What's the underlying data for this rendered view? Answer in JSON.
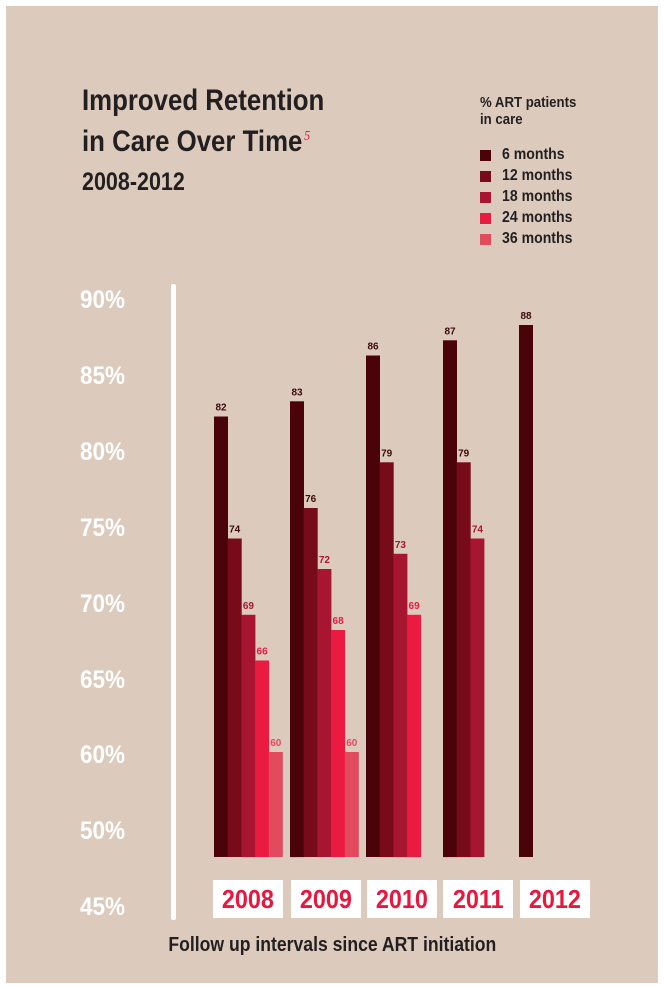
{
  "title_line1": "Improved Retention",
  "title_line2": "in Care Over Time",
  "footnote": "5",
  "subtitle": "2008-2012",
  "colors": {
    "background": "#dccbbd",
    "text": "#231f20",
    "accent": "#e8173e",
    "white": "#ffffff"
  },
  "chart_data": {
    "type": "bar",
    "title": "Improved Retention in Care Over Time",
    "subtitle": "2008-2012",
    "xlabel": "Follow up intervals since ART initiation",
    "legend_title": "% ART patients\nin care",
    "legend_position": "top-right",
    "categories": [
      "2008",
      "2009",
      "2010",
      "2011",
      "2012"
    ],
    "yticks": [
      "90%",
      "85%",
      "80%",
      "75%",
      "70%",
      "65%",
      "60%",
      "50%",
      "45%"
    ],
    "series": [
      {
        "name": "6 months",
        "color": "#4a0309",
        "values": [
          82,
          83,
          86,
          87,
          88
        ]
      },
      {
        "name": "12 months",
        "color": "#770b1a",
        "values": [
          74,
          76,
          79,
          79,
          null
        ]
      },
      {
        "name": "18 months",
        "color": "#a81530",
        "values": [
          69,
          72,
          73,
          74,
          null
        ]
      },
      {
        "name": "24 months",
        "color": "#ea1a40",
        "values": [
          66,
          68,
          69,
          null,
          null
        ]
      },
      {
        "name": "36 months",
        "color": "#e24a5e",
        "values": [
          60,
          60,
          null,
          null,
          null
        ]
      }
    ],
    "grid": false
  }
}
